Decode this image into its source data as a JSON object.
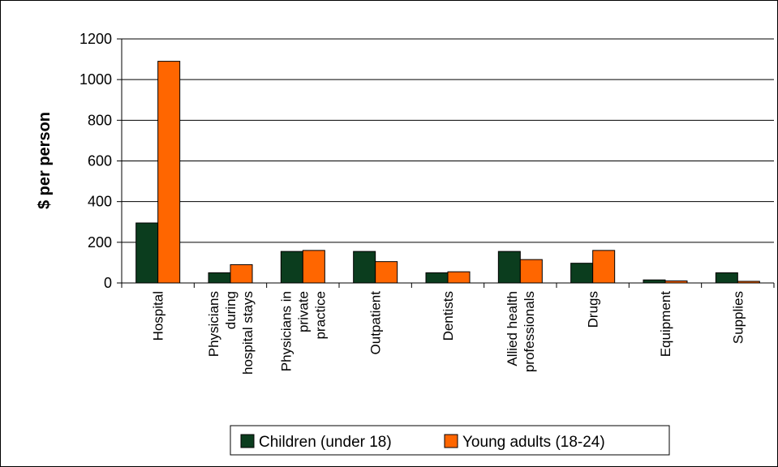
{
  "chart_data": {
    "type": "bar",
    "title": "",
    "xlabel": "",
    "ylabel": "$ per person",
    "ylim": [
      0,
      1200
    ],
    "yticks": [
      0,
      200,
      400,
      600,
      800,
      1000,
      1200
    ],
    "grid": true,
    "legend_position": "bottom",
    "categories": [
      [
        "Hospital"
      ],
      [
        "Physicians",
        "during",
        "hospital stays"
      ],
      [
        "Physicians in",
        "private",
        "practice"
      ],
      [
        "Outpatient"
      ],
      [
        "Dentists"
      ],
      [
        "Allied health",
        "professionals"
      ],
      [
        "Drugs"
      ],
      [
        "Equipment"
      ],
      [
        "Supplies"
      ]
    ],
    "series": [
      {
        "name": "Children (under 18)",
        "color": "#0b3d1e",
        "values": [
          295,
          50,
          155,
          155,
          50,
          155,
          97,
          15,
          50
        ]
      },
      {
        "name": "Young adults (18-24)",
        "color": "#ff6600",
        "values": [
          1090,
          90,
          160,
          105,
          55,
          115,
          160,
          10,
          8
        ]
      }
    ]
  }
}
